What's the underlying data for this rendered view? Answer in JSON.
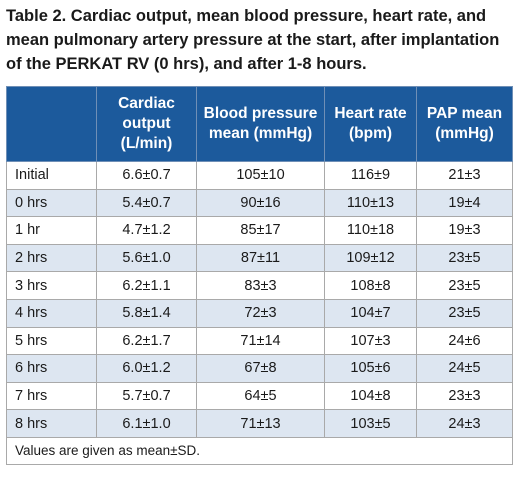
{
  "caption": "Table 2. Cardiac output, mean blood pressure, heart rate, and mean pulmonary artery pressure at the start, after implantation of the PERKAT RV (0 hrs), and after 1-8 hours.",
  "headers": {
    "h0": "",
    "h1": "Cardiac output (L/min)",
    "h2": "Blood pressure mean (mmHg)",
    "h3": "Heart rate (bpm)",
    "h4": "PAP mean (mmHg)"
  },
  "rows": [
    {
      "label": "Initial",
      "co": "6.6±0.7",
      "bp": "105±10",
      "hr": "116±9",
      "pap": "21±3"
    },
    {
      "label": "0 hrs",
      "co": "5.4±0.7",
      "bp": "90±16",
      "hr": "110±13",
      "pap": "19±4"
    },
    {
      "label": "1 hr",
      "co": "4.7±1.2",
      "bp": "85±17",
      "hr": "110±18",
      "pap": "19±3"
    },
    {
      "label": "2 hrs",
      "co": "5.6±1.0",
      "bp": "87±11",
      "hr": "109±12",
      "pap": "23±5"
    },
    {
      "label": "3 hrs",
      "co": "6.2±1.1",
      "bp": "83±3",
      "hr": "108±8",
      "pap": "23±5"
    },
    {
      "label": "4 hrs",
      "co": "5.8±1.4",
      "bp": "72±3",
      "hr": "104±7",
      "pap": "23±5"
    },
    {
      "label": "5 hrs",
      "co": "6.2±1.7",
      "bp": "71±14",
      "hr": "107±3",
      "pap": "24±6"
    },
    {
      "label": "6 hrs",
      "co": "6.0±1.2",
      "bp": "67±8",
      "hr": "105±6",
      "pap": "24±5"
    },
    {
      "label": "7 hrs",
      "co": "5.7±0.7",
      "bp": "64±5",
      "hr": "104±8",
      "pap": "23±3"
    },
    {
      "label": "8 hrs",
      "co": "6.1±1.0",
      "bp": "71±13",
      "hr": "103±5",
      "pap": "24±3"
    }
  ],
  "footnote": "Values are given as mean±SD.",
  "colors": {
    "header_bg": "#1c5a9c",
    "stripe_bg": "#dde6f1"
  }
}
